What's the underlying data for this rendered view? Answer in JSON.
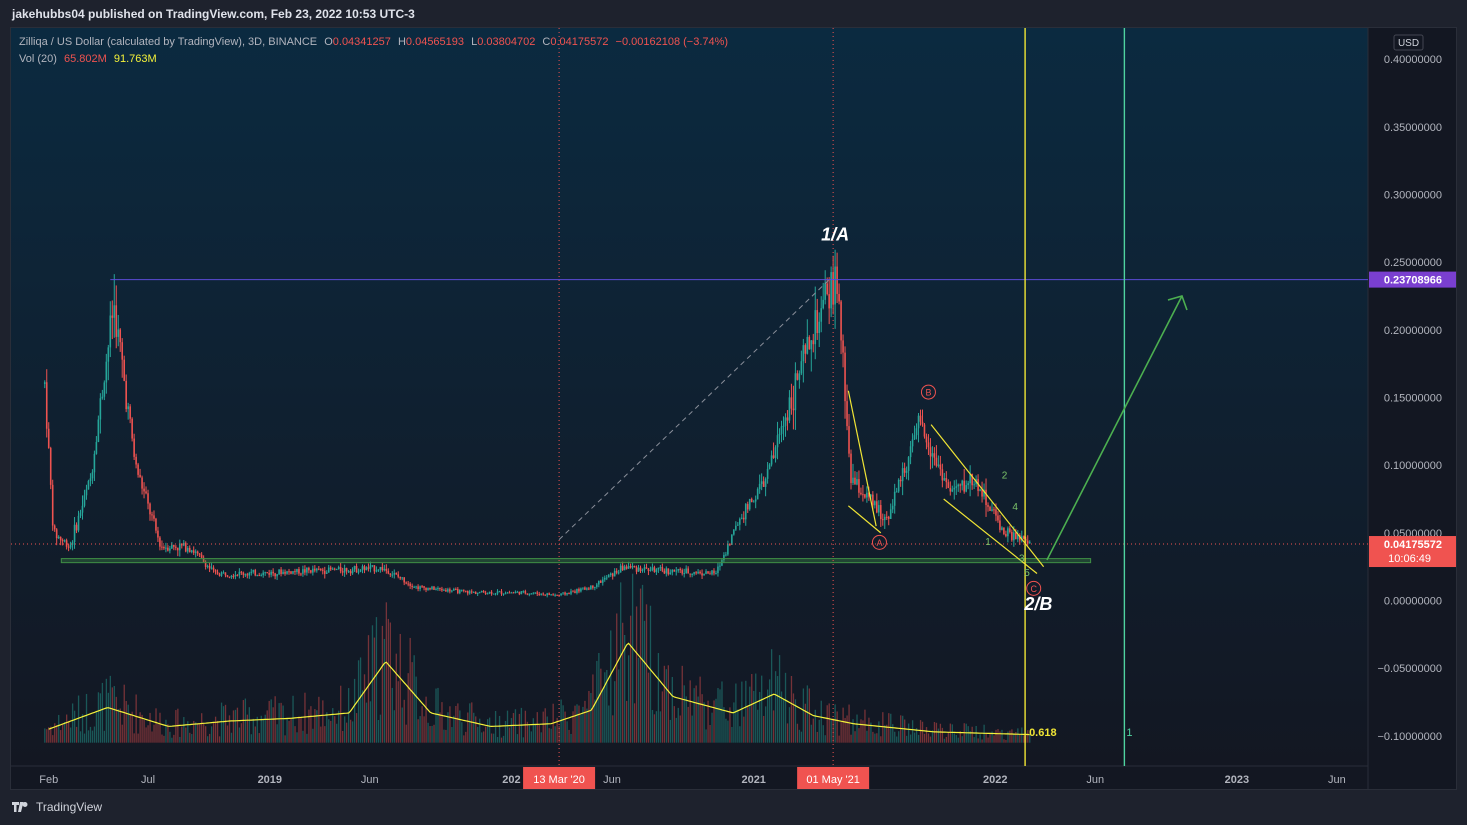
{
  "header": {
    "published": "jakehubbs04 published on TradingView.com, Feb 23, 2022 10:53 UTC-3"
  },
  "legend": {
    "title": "Zilliqa / US Dollar (calculated by TradingView), 3D, BINANCE",
    "open_key": "O",
    "open": "0.04341257",
    "high_key": "H",
    "high": "0.04565193",
    "low_key": "L",
    "low": "0.03804702",
    "close_key": "C",
    "close": "0.04175572",
    "change": "−0.00162108 (−3.74%)",
    "vol_label": "Vol (20)",
    "vol_value": "65.802M",
    "vol_ma": "91.763M"
  },
  "footer": {
    "brand": "TradingView"
  },
  "colors": {
    "background_top": "#0b2a40",
    "background_bottom": "#131722",
    "up": "#26a69a",
    "down": "#ef5350",
    "volume_ma": "#f5f23a",
    "resistance": "#5b4bd6",
    "support_zone": "#3f8f45",
    "arrow": "#4caf50",
    "yellow": "#f0e535",
    "cyan_line": "#4fd3a0",
    "price_tag": "#f05350",
    "resistance_tag": "#7a3fd0"
  },
  "chart_data": {
    "type": "candlestick",
    "symbol": "Zilliqa / US Dollar",
    "timeframe": "3D",
    "exchange": "BINANCE",
    "currency": "USD",
    "ylim": [
      -0.12,
      0.42
    ],
    "y_ticks": [
      "0.40000000",
      "0.35000000",
      "0.30000000",
      "0.25000000",
      "0.20000000",
      "0.15000000",
      "0.10000000",
      "0.05000000",
      "0.00000000",
      "−0.05000000",
      "−0.10000000"
    ],
    "y_tick_values": [
      0.4,
      0.35,
      0.3,
      0.25,
      0.2,
      0.15,
      0.1,
      0.05,
      0.0,
      -0.05,
      -0.1
    ],
    "x_ticks": [
      {
        "label": "Feb",
        "date": "2018-02-01"
      },
      {
        "label": "Jul",
        "date": "2018-07-01"
      },
      {
        "label": "2019",
        "date": "2019-01-01"
      },
      {
        "label": "Jun",
        "date": "2019-06-01"
      },
      {
        "label": "202",
        "date": "2020-01-01"
      },
      {
        "label": "Jun",
        "date": "2020-06-01"
      },
      {
        "label": "2021",
        "date": "2021-01-01"
      },
      {
        "label": "2022",
        "date": "2022-01-01"
      },
      {
        "label": "Jun",
        "date": "2022-06-01"
      },
      {
        "label": "2023",
        "date": "2023-01-01"
      },
      {
        "label": "Jun",
        "date": "2023-06-01"
      }
    ],
    "x_range": [
      "2017-12-06",
      "2023-12-01"
    ],
    "price_path": [
      [
        "2018-01-26",
        0.16
      ],
      [
        "2018-02-08",
        0.05
      ],
      [
        "2018-03-05",
        0.04
      ],
      [
        "2018-04-05",
        0.09
      ],
      [
        "2018-05-05",
        0.2
      ],
      [
        "2018-05-10",
        0.22
      ],
      [
        "2018-06-12",
        0.1
      ],
      [
        "2018-07-20",
        0.04
      ],
      [
        "2018-09-01",
        0.04
      ],
      [
        "2018-10-10",
        0.02
      ],
      [
        "2018-12-10",
        0.02
      ],
      [
        "2019-03-01",
        0.022
      ],
      [
        "2019-06-20",
        0.024
      ],
      [
        "2019-08-10",
        0.01
      ],
      [
        "2019-11-01",
        0.006
      ],
      [
        "2020-01-15",
        0.006
      ],
      [
        "2020-03-13",
        0.004
      ],
      [
        "2020-05-01",
        0.01
      ],
      [
        "2020-06-20",
        0.025
      ],
      [
        "2020-08-15",
        0.022
      ],
      [
        "2020-11-05",
        0.02
      ],
      [
        "2020-12-10",
        0.06
      ],
      [
        "2021-01-20",
        0.09
      ],
      [
        "2021-02-20",
        0.14
      ],
      [
        "2021-03-20",
        0.18
      ],
      [
        "2021-04-20",
        0.22
      ],
      [
        "2021-05-06",
        0.24
      ],
      [
        "2021-05-28",
        0.09
      ],
      [
        "2021-07-20",
        0.06
      ],
      [
        "2021-09-10",
        0.13
      ],
      [
        "2021-10-25",
        0.08
      ],
      [
        "2021-11-30",
        0.09
      ],
      [
        "2022-01-15",
        0.05
      ],
      [
        "2022-02-23",
        0.042
      ]
    ],
    "volume_ma_path": [
      [
        "2018-02-01",
        0.01
      ],
      [
        "2018-05-01",
        0.026
      ],
      [
        "2018-08-01",
        0.012
      ],
      [
        "2018-11-01",
        0.016
      ],
      [
        "2019-02-01",
        0.018
      ],
      [
        "2019-05-01",
        0.022
      ],
      [
        "2019-06-25",
        0.06
      ],
      [
        "2019-09-01",
        0.022
      ],
      [
        "2019-12-01",
        0.012
      ],
      [
        "2020-03-01",
        0.014
      ],
      [
        "2020-05-01",
        0.024
      ],
      [
        "2020-06-25",
        0.074
      ],
      [
        "2020-09-01",
        0.034
      ],
      [
        "2020-12-01",
        0.022
      ],
      [
        "2021-02-01",
        0.036
      ],
      [
        "2021-04-01",
        0.02
      ],
      [
        "2021-06-01",
        0.014
      ],
      [
        "2021-10-01",
        0.008
      ],
      [
        "2022-02-23",
        0.006
      ]
    ],
    "current_price": "0.04175572",
    "countdown": "10:06:49",
    "resistance_level": "0.23708966",
    "resistance_value": 0.23708966,
    "support_zone": [
      0.028,
      0.031
    ],
    "fib_label": "0.618",
    "annotations": {
      "wave_1a": "1/A",
      "wave_2b": "2/B",
      "circle_a": "A",
      "circle_b": "B",
      "circle_c": "C",
      "sub_waves": [
        "1",
        "2",
        "3",
        "4",
        "5"
      ],
      "fib_count": "1"
    },
    "date_tags": [
      "13 Mar '20",
      "01 May '21"
    ]
  }
}
